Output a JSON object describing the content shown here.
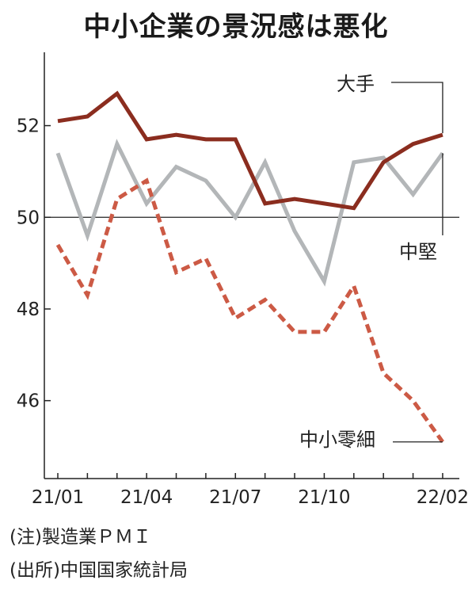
{
  "title": "中小企業の景況感は悪化",
  "notes": {
    "note": "(注)製造業ＰＭＩ",
    "source": "(出所)中国国家統計局"
  },
  "chart_data": {
    "type": "line",
    "x": [
      "21/01",
      "21/02",
      "21/03",
      "21/04",
      "21/05",
      "21/06",
      "21/07",
      "21/08",
      "21/09",
      "21/10",
      "21/11",
      "21/12",
      "22/01",
      "22/02"
    ],
    "x_tick_labels": [
      "21/01",
      "21/04",
      "21/07",
      "21/10",
      "22/02"
    ],
    "ylim": [
      44.3,
      53.6
    ],
    "y_ticks": [
      46,
      48,
      50,
      52
    ],
    "reference_line": 50,
    "series": [
      {
        "name": "大手",
        "color": "#8b2d1f",
        "style": "solid",
        "values": [
          52.1,
          52.2,
          52.7,
          51.7,
          51.8,
          51.7,
          51.7,
          50.3,
          50.4,
          50.3,
          50.2,
          51.2,
          51.6,
          51.8
        ]
      },
      {
        "name": "中堅",
        "color": "#b3b6b8",
        "style": "solid",
        "values": [
          51.4,
          49.6,
          51.6,
          50.3,
          51.1,
          50.8,
          50.0,
          51.2,
          49.7,
          48.6,
          51.2,
          51.3,
          50.5,
          51.4
        ]
      },
      {
        "name": "中小零細",
        "color": "#cc5a45",
        "style": "dashed",
        "values": [
          49.4,
          48.3,
          50.4,
          50.8,
          48.8,
          49.1,
          47.8,
          48.2,
          47.5,
          47.5,
          48.5,
          46.6,
          46.0,
          45.1
        ]
      }
    ],
    "grid": false
  }
}
